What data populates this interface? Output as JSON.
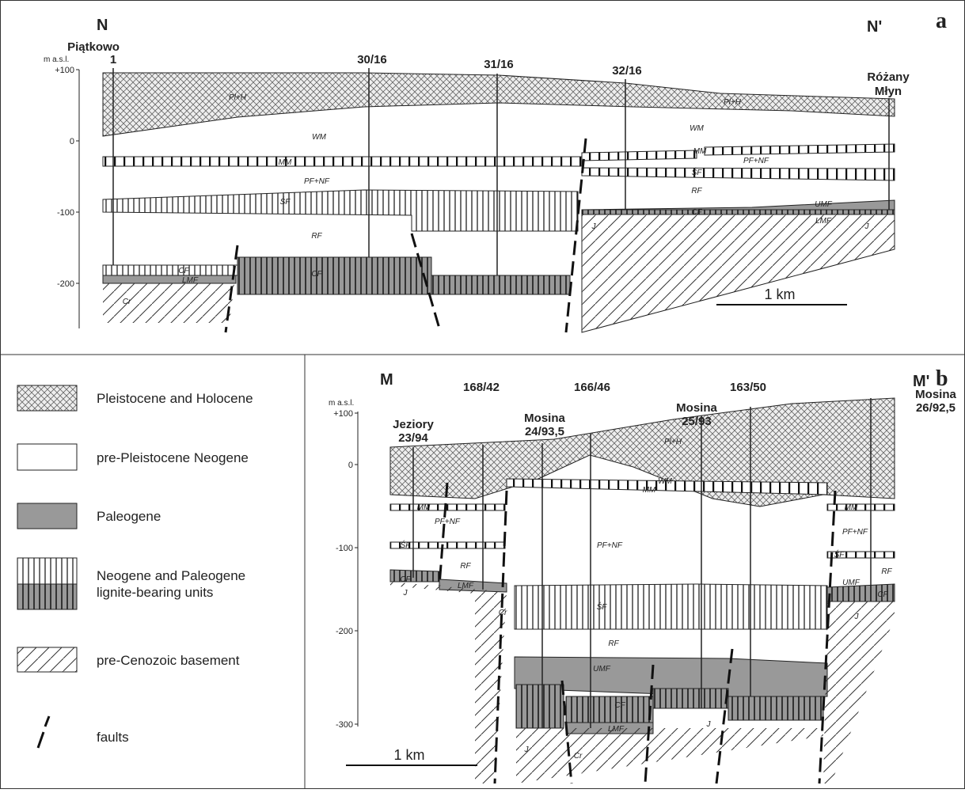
{
  "panel_a": {
    "letter": "a",
    "start": "N",
    "end": "N'",
    "axis_unit": "m a.s.l.",
    "ticks": [
      "+100",
      "0",
      "-100",
      "-200"
    ],
    "wells": [
      [
        "Piątkowo",
        "1"
      ],
      [
        "30/16"
      ],
      [
        "31/16"
      ],
      [
        "32/16"
      ],
      [
        "Różany",
        "Młyn"
      ]
    ],
    "unit_labels": [
      "Pl+H",
      "Pl+H",
      "WM",
      "WM",
      "MM",
      "MM",
      "PF+NF",
      "PF+NF",
      "ŚF",
      "ŚF",
      "RF",
      "RF",
      "CF",
      "CF",
      "CF",
      "UMF",
      "LMF",
      "LMF",
      "J",
      "J",
      "Cr"
    ],
    "scale": "1 km"
  },
  "panel_b": {
    "letter": "b",
    "start": "M",
    "end": "M'",
    "axis_unit": "m a.s.l.",
    "ticks": [
      "+100",
      "0",
      "-100",
      "-200",
      "-300"
    ],
    "wells": [
      [
        "Jeziory",
        "23/94"
      ],
      [
        "168/42"
      ],
      [
        "Mosina",
        "24/93,5"
      ],
      [
        "166/46"
      ],
      [
        "Mosina",
        "25/93"
      ],
      [
        "163/50"
      ],
      [
        "Mosina",
        "26/92,5"
      ]
    ],
    "unit_labels": [
      "Pl+H",
      "WM",
      "MM",
      "MM",
      "MM",
      "PF+NF",
      "PF+NF",
      "PF+NF",
      "ŚF",
      "ŚF",
      "ŚF",
      "RF",
      "RF",
      "RF",
      "UMF",
      "UMF",
      "CF",
      "CF",
      "CF",
      "LMF",
      "LMF",
      "J",
      "J",
      "J",
      "J",
      "Cr",
      "Cr"
    ],
    "scale": "1 km"
  },
  "legend": [
    "Pleistocene and Holocene",
    "pre-Pleistocene Neogene",
    "Paleogene",
    [
      "Neogene and Paleogene",
      "lignite-bearing units"
    ],
    "pre-Cenozoic basement",
    "faults"
  ]
}
